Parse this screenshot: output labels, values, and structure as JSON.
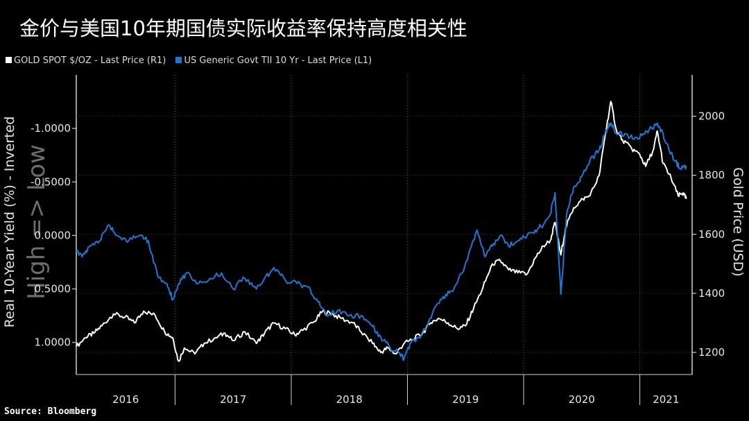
{
  "title": "金价与美国10年期国债实际收益率保持高度相关性",
  "legend": [
    {
      "label": "GOLD SPOT $/OZ - Last Price (R1)",
      "color": "#ffffff"
    },
    {
      "label": "US Generic Govt TII 10 Yr - Last Price (L1)",
      "color": "#1f77d4"
    }
  ],
  "source": "Source: Bloomberg",
  "watermark": "High => Low",
  "chart_data": {
    "type": "line",
    "left_axis": {
      "label": "Real 10-Year Yield (%) - Inverted",
      "inverted": true,
      "range": [
        -1.5,
        1.3
      ],
      "ticks": [
        -1.0,
        -0.5,
        0.0,
        0.5,
        1.0
      ],
      "tick_labels": [
        "-1.0000",
        "-0.5000",
        "0.0000",
        "0.5000",
        "1.0000"
      ]
    },
    "right_axis": {
      "label": "Gold Price (USD)",
      "range": [
        1125,
        2140
      ],
      "ticks": [
        1200,
        1400,
        1600,
        1800,
        2000
      ],
      "tick_labels": [
        "1200",
        "1400",
        "1600",
        "1800",
        "2000"
      ]
    },
    "x_axis": {
      "range": [
        2016.0,
        2021.3
      ],
      "year_labels": [
        "2016",
        "2017",
        "2018",
        "2019",
        "2020",
        "2021"
      ],
      "year_boundaries": [
        2016.85,
        2017.85,
        2018.85,
        2019.85,
        2020.85
      ]
    },
    "grid": true,
    "legend_position": "top-left",
    "series": [
      {
        "name": "GOLD SPOT $/OZ - Last Price (R1)",
        "axis": "right",
        "color": "#ffffff",
        "points": [
          [
            2016.0,
            1220
          ],
          [
            2016.08,
            1250
          ],
          [
            2016.15,
            1265
          ],
          [
            2016.22,
            1290
          ],
          [
            2016.32,
            1330
          ],
          [
            2016.42,
            1320
          ],
          [
            2016.5,
            1300
          ],
          [
            2016.58,
            1340
          ],
          [
            2016.68,
            1325
          ],
          [
            2016.76,
            1270
          ],
          [
            2016.83,
            1250
          ],
          [
            2016.88,
            1170
          ],
          [
            2016.93,
            1215
          ],
          [
            2017.02,
            1195
          ],
          [
            2017.1,
            1230
          ],
          [
            2017.2,
            1250
          ],
          [
            2017.28,
            1265
          ],
          [
            2017.35,
            1240
          ],
          [
            2017.45,
            1270
          ],
          [
            2017.55,
            1230
          ],
          [
            2017.62,
            1265
          ],
          [
            2017.7,
            1300
          ],
          [
            2017.8,
            1280
          ],
          [
            2017.88,
            1260
          ],
          [
            2017.95,
            1275
          ],
          [
            2018.05,
            1305
          ],
          [
            2018.12,
            1340
          ],
          [
            2018.2,
            1330
          ],
          [
            2018.28,
            1315
          ],
          [
            2018.38,
            1300
          ],
          [
            2018.45,
            1270
          ],
          [
            2018.55,
            1230
          ],
          [
            2018.62,
            1200
          ],
          [
            2018.68,
            1215
          ],
          [
            2018.75,
            1195
          ],
          [
            2018.82,
            1230
          ],
          [
            2018.9,
            1245
          ],
          [
            2018.98,
            1265
          ],
          [
            2019.05,
            1300
          ],
          [
            2019.12,
            1315
          ],
          [
            2019.2,
            1300
          ],
          [
            2019.28,
            1280
          ],
          [
            2019.35,
            1290
          ],
          [
            2019.42,
            1350
          ],
          [
            2019.5,
            1420
          ],
          [
            2019.58,
            1500
          ],
          [
            2019.65,
            1510
          ],
          [
            2019.72,
            1480
          ],
          [
            2019.8,
            1470
          ],
          [
            2019.88,
            1465
          ],
          [
            2019.95,
            1520
          ],
          [
            2020.02,
            1560
          ],
          [
            2020.08,
            1580
          ],
          [
            2020.12,
            1640
          ],
          [
            2020.17,
            1530
          ],
          [
            2020.21,
            1620
          ],
          [
            2020.28,
            1690
          ],
          [
            2020.36,
            1720
          ],
          [
            2020.42,
            1730
          ],
          [
            2020.5,
            1800
          ],
          [
            2020.55,
            1930
          ],
          [
            2020.6,
            2050
          ],
          [
            2020.65,
            1950
          ],
          [
            2020.7,
            1920
          ],
          [
            2020.78,
            1890
          ],
          [
            2020.85,
            1870
          ],
          [
            2020.9,
            1830
          ],
          [
            2020.97,
            1890
          ],
          [
            2021.0,
            1950
          ],
          [
            2021.05,
            1840
          ],
          [
            2021.12,
            1790
          ],
          [
            2021.18,
            1730
          ],
          [
            2021.22,
            1740
          ],
          [
            2021.25,
            1720
          ]
        ]
      },
      {
        "name": "US Generic Govt TII 10 Yr - Last Price (L1)",
        "axis": "left",
        "color": "#1f77d4",
        "points": [
          [
            2016.0,
            0.15
          ],
          [
            2016.05,
            0.2
          ],
          [
            2016.12,
            0.1
          ],
          [
            2016.2,
            0.05
          ],
          [
            2016.28,
            -0.1
          ],
          [
            2016.35,
            0.0
          ],
          [
            2016.45,
            0.05
          ],
          [
            2016.55,
            0.0
          ],
          [
            2016.62,
            0.05
          ],
          [
            2016.7,
            0.38
          ],
          [
            2016.78,
            0.45
          ],
          [
            2016.83,
            0.6
          ],
          [
            2016.88,
            0.45
          ],
          [
            2016.95,
            0.35
          ],
          [
            2017.05,
            0.45
          ],
          [
            2017.15,
            0.4
          ],
          [
            2017.25,
            0.35
          ],
          [
            2017.35,
            0.5
          ],
          [
            2017.45,
            0.4
          ],
          [
            2017.55,
            0.5
          ],
          [
            2017.62,
            0.4
          ],
          [
            2017.7,
            0.3
          ],
          [
            2017.8,
            0.42
          ],
          [
            2017.9,
            0.45
          ],
          [
            2018.0,
            0.48
          ],
          [
            2018.08,
            0.62
          ],
          [
            2018.15,
            0.75
          ],
          [
            2018.25,
            0.7
          ],
          [
            2018.35,
            0.75
          ],
          [
            2018.45,
            0.75
          ],
          [
            2018.55,
            0.85
          ],
          [
            2018.62,
            0.95
          ],
          [
            2018.7,
            1.05
          ],
          [
            2018.78,
            1.1
          ],
          [
            2018.82,
            1.15
          ],
          [
            2018.88,
            1.0
          ],
          [
            2018.95,
            0.95
          ],
          [
            2019.02,
            0.85
          ],
          [
            2019.1,
            0.65
          ],
          [
            2019.18,
            0.55
          ],
          [
            2019.25,
            0.5
          ],
          [
            2019.32,
            0.35
          ],
          [
            2019.4,
            0.1
          ],
          [
            2019.45,
            -0.05
          ],
          [
            2019.52,
            0.2
          ],
          [
            2019.58,
            0.1
          ],
          [
            2019.65,
            0.0
          ],
          [
            2019.72,
            0.1
          ],
          [
            2019.8,
            0.05
          ],
          [
            2019.88,
            0.0
          ],
          [
            2019.95,
            -0.05
          ],
          [
            2020.02,
            -0.1
          ],
          [
            2020.08,
            -0.2
          ],
          [
            2020.12,
            -0.4
          ],
          [
            2020.17,
            0.55
          ],
          [
            2020.22,
            -0.2
          ],
          [
            2020.28,
            -0.45
          ],
          [
            2020.35,
            -0.55
          ],
          [
            2020.42,
            -0.7
          ],
          [
            2020.5,
            -0.8
          ],
          [
            2020.55,
            -0.95
          ],
          [
            2020.6,
            -1.05
          ],
          [
            2020.65,
            -0.95
          ],
          [
            2020.72,
            -0.95
          ],
          [
            2020.8,
            -0.9
          ],
          [
            2020.88,
            -0.95
          ],
          [
            2020.95,
            -1.0
          ],
          [
            2021.0,
            -1.05
          ],
          [
            2021.05,
            -0.95
          ],
          [
            2021.1,
            -0.8
          ],
          [
            2021.15,
            -0.7
          ],
          [
            2021.2,
            -0.62
          ],
          [
            2021.25,
            -0.65
          ]
        ]
      }
    ]
  }
}
